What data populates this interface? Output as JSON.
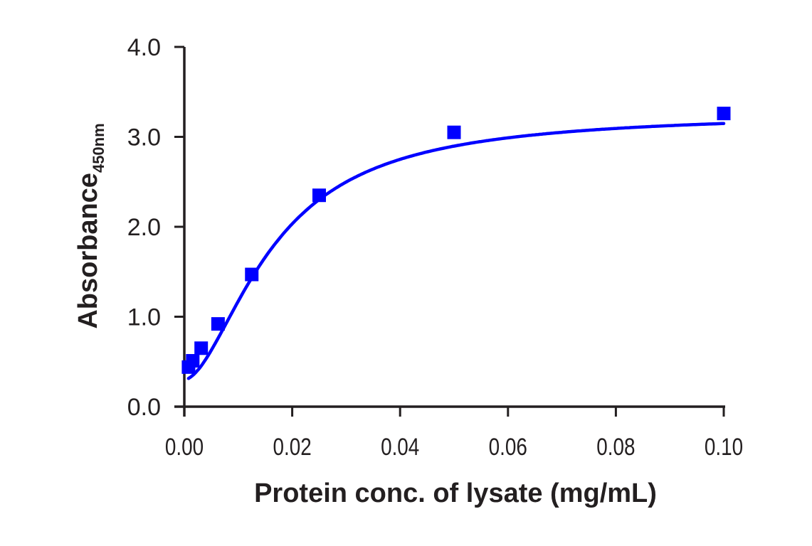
{
  "chart_data": {
    "type": "line",
    "title": "",
    "xlabel": "Protein conc. of lysate (mg/mL)",
    "ylabel": "Absorbance",
    "ylabel_subscript": "450nm",
    "xlim": [
      0,
      0.1
    ],
    "ylim": [
      0,
      4.0
    ],
    "x_ticks": [
      0.0,
      0.02,
      0.04,
      0.06,
      0.08,
      0.1
    ],
    "x_tick_labels": [
      "0.00",
      "0.02",
      "0.04",
      "0.06",
      "0.08",
      "0.10"
    ],
    "y_ticks": [
      0.0,
      1.0,
      2.0,
      3.0,
      4.0
    ],
    "y_tick_labels": [
      "0.0",
      "1.0",
      "2.0",
      "3.0",
      "4.0"
    ],
    "grid": false,
    "legend": null,
    "series": [
      {
        "name": "Absorbance",
        "color": "#0000ff",
        "marker": "square",
        "line": "smooth fitted curve",
        "x": [
          0.00078,
          0.00156,
          0.003125,
          0.00625,
          0.0125,
          0.025,
          0.05,
          0.1
        ],
        "y": [
          0.44,
          0.51,
          0.65,
          0.92,
          1.47,
          2.35,
          3.05,
          3.26
        ]
      }
    ]
  },
  "colors": {
    "series": "#0000ff",
    "axis": "#231f20",
    "background": "#ffffff"
  }
}
